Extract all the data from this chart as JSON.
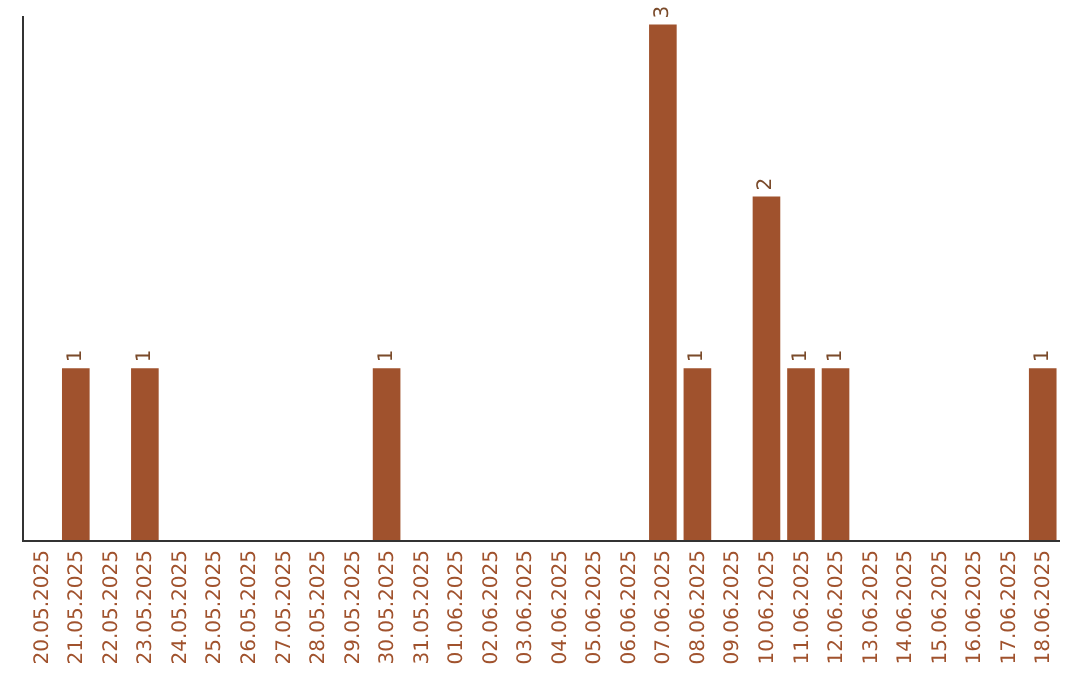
{
  "chart_data": {
    "type": "bar",
    "categories": [
      "20.05.2025",
      "21.05.2025",
      "22.05.2025",
      "23.05.2025",
      "24.05.2025",
      "25.05.2025",
      "26.05.2025",
      "27.05.2025",
      "28.05.2025",
      "29.05.2025",
      "30.05.2025",
      "31.05.2025",
      "01.06.2025",
      "02.06.2025",
      "03.06.2025",
      "04.06.2025",
      "05.06.2025",
      "06.06.2025",
      "07.06.2025",
      "08.06.2025",
      "09.06.2025",
      "10.06.2025",
      "11.06.2025",
      "12.06.2025",
      "13.06.2025",
      "14.06.2025",
      "15.06.2025",
      "16.06.2025",
      "17.06.2025",
      "18.06.2025"
    ],
    "values": [
      0,
      1,
      0,
      1,
      0,
      0,
      0,
      0,
      0,
      0,
      1,
      0,
      0,
      0,
      0,
      0,
      0,
      0,
      3,
      1,
      0,
      2,
      1,
      1,
      0,
      0,
      0,
      0,
      0,
      1
    ],
    "value_labels": [
      null,
      "1",
      null,
      "1",
      null,
      null,
      null,
      null,
      null,
      null,
      "1",
      null,
      null,
      null,
      null,
      null,
      null,
      null,
      "3",
      "1",
      null,
      "2",
      "1",
      "1",
      null,
      null,
      null,
      null,
      null,
      "1"
    ],
    "color": "#a0522d",
    "ylim": [
      0,
      3.05
    ],
    "tick_labels": "x",
    "legend": false
  }
}
